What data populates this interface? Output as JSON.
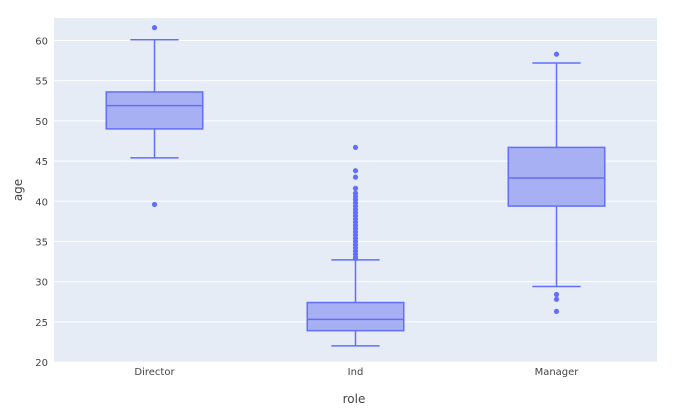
{
  "chart_data": {
    "type": "box",
    "xlabel": "role",
    "ylabel": "age",
    "ylim": [
      20,
      62.8
    ],
    "yticks": [
      20,
      25,
      30,
      35,
      40,
      45,
      50,
      55,
      60
    ],
    "categories": [
      "Director",
      "Ind",
      "Manager"
    ],
    "boxes": [
      {
        "category": "Director",
        "lowerfence": 45.4,
        "q1": 49.0,
        "median": 51.9,
        "q3": 53.6,
        "upperfence": 60.1,
        "outliers": [
          61.6,
          39.6
        ]
      },
      {
        "category": "Ind",
        "lowerfence": 22.0,
        "q1": 23.9,
        "median": 25.3,
        "q3": 27.4,
        "upperfence": 32.7,
        "outliers": [
          46.7,
          43.8,
          43.0,
          41.6,
          41.0,
          40.6,
          40.2,
          39.8,
          39.4,
          39.0,
          38.6,
          38.2,
          37.8,
          37.4,
          37.0,
          36.6,
          36.2,
          35.8,
          35.4,
          35.0,
          34.6,
          34.2,
          33.8,
          33.4,
          33.0,
          32.9
        ]
      },
      {
        "category": "Manager",
        "lowerfence": 29.4,
        "q1": 39.4,
        "median": 42.9,
        "q3": 46.7,
        "upperfence": 57.2,
        "outliers": [
          58.3,
          28.4,
          27.8,
          26.3
        ]
      }
    ],
    "colors": {
      "fill": "#a7b0f3",
      "line": "#636efa",
      "plot_bg": "#e5ecf6",
      "grid": "#ffffff"
    },
    "grid": true
  }
}
